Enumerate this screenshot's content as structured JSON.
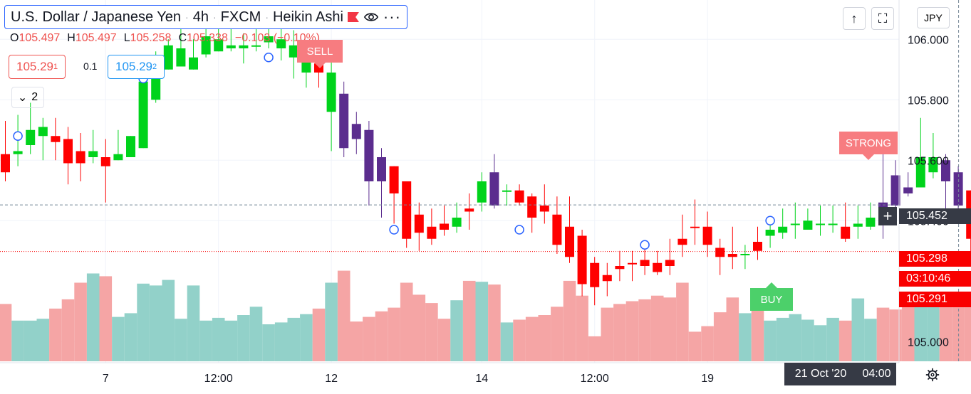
{
  "header": {
    "symbol": "U.S. Dollar / Japanese Yen",
    "interval": "4h",
    "exchange": "FXCM",
    "chart_style": "Heikin Ashi",
    "sep": "·"
  },
  "ohlc": {
    "o_label": "O",
    "o": "105.497",
    "h_label": "H",
    "h": "105.497",
    "l_label": "L",
    "l": "105.258",
    "c_label": "C",
    "c": "105.338",
    "change": "−0.103 (−0.10%)"
  },
  "quotes": {
    "bid": "105.29",
    "bid_sup": "1",
    "spread": "0.1",
    "ask": "105.29",
    "ask_sup": "2"
  },
  "indicators_toggle": {
    "chevron": "⌄",
    "count": "2"
  },
  "toolbar": {
    "currency": "JPY",
    "arrow_glyph": "↑",
    "maximize_glyph": "⛶"
  },
  "signals": {
    "sell": "SELL",
    "strong": "STRONG",
    "buy": "BUY"
  },
  "price_labels": {
    "crosshair": "105.452",
    "last": "105.298",
    "countdown": "03:10:46",
    "bid": "105.291",
    "plus": "+"
  },
  "time_labels": {
    "crosshair_date": "21 Oct '20",
    "crosshair_time": "04:00"
  },
  "colors": {
    "bull": "#00d31b",
    "bear": "#ff0000",
    "strong_bear": "#5b2d8e",
    "vol_up": "#92d1c9",
    "vol_down": "#f5a5a5",
    "grid": "#f0f3fa",
    "axis_text": "#131722"
  },
  "chart_data": {
    "type": "candlestick",
    "title": "U.S. Dollar / Japanese Yen · 4h · FXCM · Heikin Ashi",
    "ylim": [
      104.93,
      106.13
    ],
    "y_ticks": [
      106.0,
      105.8,
      105.6,
      105.4,
      105.0
    ],
    "y_tick_labels": [
      "106.000",
      "105.800",
      "105.600",
      "105.400",
      "105.000"
    ],
    "x_ticks": [
      {
        "index": 8,
        "label": "7"
      },
      {
        "index": 17,
        "label": "12:00"
      },
      {
        "index": 26,
        "label": "12"
      },
      {
        "index": 38,
        "label": "14"
      },
      {
        "index": 47,
        "label": "12:00"
      },
      {
        "index": 56,
        "label": "19"
      }
    ],
    "crosshair_price": 105.452,
    "last_price": 105.298,
    "candles": [
      {
        "o": 105.62,
        "h": 105.73,
        "l": 105.53,
        "c": 105.56,
        "d": "down",
        "v": 0.62
      },
      {
        "o": 105.63,
        "h": 105.75,
        "l": 105.58,
        "c": 105.62,
        "d": "up",
        "v": 0.44
      },
      {
        "o": 105.7,
        "h": 105.79,
        "l": 105.62,
        "c": 105.65,
        "d": "up",
        "v": 0.44
      },
      {
        "o": 105.68,
        "h": 105.74,
        "l": 105.6,
        "c": 105.71,
        "d": "up",
        "v": 0.46
      },
      {
        "o": 105.68,
        "h": 105.74,
        "l": 105.6,
        "c": 105.66,
        "d": "down",
        "v": 0.57
      },
      {
        "o": 105.67,
        "h": 105.71,
        "l": 105.52,
        "c": 105.59,
        "d": "down",
        "v": 0.67
      },
      {
        "o": 105.63,
        "h": 105.69,
        "l": 105.53,
        "c": 105.59,
        "d": "down",
        "v": 0.85
      },
      {
        "o": 105.63,
        "h": 105.7,
        "l": 105.59,
        "c": 105.61,
        "d": "up",
        "v": 0.95
      },
      {
        "o": 105.61,
        "h": 105.67,
        "l": 105.46,
        "c": 105.58,
        "d": "down",
        "v": 0.92
      },
      {
        "o": 105.62,
        "h": 105.7,
        "l": 105.6,
        "c": 105.6,
        "d": "up",
        "v": 0.48
      },
      {
        "o": 105.68,
        "h": 105.68,
        "l": 105.61,
        "c": 105.61,
        "d": "up",
        "v": 0.52
      },
      {
        "o": 105.86,
        "h": 105.86,
        "l": 105.64,
        "c": 105.64,
        "d": "up",
        "v": 0.84
      },
      {
        "o": 105.87,
        "h": 105.96,
        "l": 105.79,
        "c": 105.8,
        "d": "up",
        "v": 0.82
      },
      {
        "o": 105.98,
        "h": 106.0,
        "l": 105.9,
        "c": 105.9,
        "d": "up",
        "v": 0.88
      },
      {
        "o": 105.97,
        "h": 106.06,
        "l": 105.91,
        "c": 105.91,
        "d": "up",
        "v": 0.46
      },
      {
        "o": 105.94,
        "h": 106.0,
        "l": 105.9,
        "c": 105.9,
        "d": "up",
        "v": 0.82
      },
      {
        "o": 106.01,
        "h": 106.07,
        "l": 105.94,
        "c": 105.95,
        "d": "up",
        "v": 0.44
      },
      {
        "o": 106.0,
        "h": 106.05,
        "l": 105.96,
        "c": 105.96,
        "d": "up",
        "v": 0.47
      },
      {
        "o": 105.98,
        "h": 106.05,
        "l": 105.96,
        "c": 105.97,
        "d": "up",
        "v": 0.44
      },
      {
        "o": 105.98,
        "h": 106.02,
        "l": 105.92,
        "c": 105.97,
        "d": "up",
        "v": 0.5
      },
      {
        "o": 105.98,
        "h": 106.04,
        "l": 105.96,
        "c": 105.98,
        "d": "up",
        "v": 0.59
      },
      {
        "o": 106.01,
        "h": 106.06,
        "l": 105.97,
        "c": 105.99,
        "d": "up",
        "v": 0.4
      },
      {
        "o": 106.0,
        "h": 106.05,
        "l": 105.93,
        "c": 105.97,
        "d": "up",
        "v": 0.42
      },
      {
        "o": 105.98,
        "h": 106.03,
        "l": 105.87,
        "c": 105.94,
        "d": "up",
        "v": 0.47
      },
      {
        "o": 105.94,
        "h": 105.97,
        "l": 105.84,
        "c": 105.89,
        "d": "up",
        "v": 0.51
      },
      {
        "o": 105.92,
        "h": 105.97,
        "l": 105.84,
        "c": 105.89,
        "d": "down",
        "v": 0.57
      },
      {
        "o": 105.89,
        "h": 105.94,
        "l": 105.63,
        "c": 105.76,
        "d": "up",
        "v": 0.85
      },
      {
        "o": 105.82,
        "h": 105.86,
        "l": 105.61,
        "c": 105.64,
        "d": "strong",
        "v": 0.98
      },
      {
        "o": 105.72,
        "h": 105.76,
        "l": 105.62,
        "c": 105.67,
        "d": "strong",
        "v": 0.43
      },
      {
        "o": 105.7,
        "h": 105.73,
        "l": 105.45,
        "c": 105.53,
        "d": "strong",
        "v": 0.48
      },
      {
        "o": 105.61,
        "h": 105.64,
        "l": 105.41,
        "c": 105.53,
        "d": "strong",
        "v": 0.54
      },
      {
        "o": 105.58,
        "h": 105.58,
        "l": 105.39,
        "c": 105.49,
        "d": "down",
        "v": 0.58
      },
      {
        "o": 105.53,
        "h": 105.53,
        "l": 105.31,
        "c": 105.34,
        "d": "down",
        "v": 0.85
      },
      {
        "o": 105.42,
        "h": 105.46,
        "l": 105.3,
        "c": 105.36,
        "d": "down",
        "v": 0.72
      },
      {
        "o": 105.38,
        "h": 105.44,
        "l": 105.32,
        "c": 105.34,
        "d": "down",
        "v": 0.63
      },
      {
        "o": 105.39,
        "h": 105.45,
        "l": 105.35,
        "c": 105.37,
        "d": "down",
        "v": 0.46
      },
      {
        "o": 105.41,
        "h": 105.46,
        "l": 105.36,
        "c": 105.38,
        "d": "up",
        "v": 0.66
      },
      {
        "o": 105.44,
        "h": 105.49,
        "l": 105.37,
        "c": 105.43,
        "d": "down",
        "v": 0.87
      },
      {
        "o": 105.53,
        "h": 105.56,
        "l": 105.43,
        "c": 105.46,
        "d": "up",
        "v": 0.86
      },
      {
        "o": 105.56,
        "h": 105.62,
        "l": 105.44,
        "c": 105.45,
        "d": "strong",
        "v": 0.83
      },
      {
        "o": 105.5,
        "h": 105.52,
        "l": 105.45,
        "c": 105.5,
        "d": "up",
        "v": 0.42
      },
      {
        "o": 105.5,
        "h": 105.52,
        "l": 105.45,
        "c": 105.46,
        "d": "down",
        "v": 0.45
      },
      {
        "o": 105.48,
        "h": 105.49,
        "l": 105.36,
        "c": 105.41,
        "d": "down",
        "v": 0.48
      },
      {
        "o": 105.45,
        "h": 105.52,
        "l": 105.39,
        "c": 105.43,
        "d": "down",
        "v": 0.5
      },
      {
        "o": 105.42,
        "h": 105.48,
        "l": 105.29,
        "c": 105.32,
        "d": "down",
        "v": 0.59
      },
      {
        "o": 105.38,
        "h": 105.48,
        "l": 105.26,
        "c": 105.28,
        "d": "down",
        "v": 0.87
      },
      {
        "o": 105.35,
        "h": 105.37,
        "l": 105.15,
        "c": 105.19,
        "d": "down",
        "v": 0.71
      },
      {
        "o": 105.26,
        "h": 105.28,
        "l": 105.12,
        "c": 105.18,
        "d": "down",
        "v": 0.27
      },
      {
        "o": 105.22,
        "h": 105.26,
        "l": 105.15,
        "c": 105.2,
        "d": "down",
        "v": 0.58
      },
      {
        "o": 105.24,
        "h": 105.3,
        "l": 105.2,
        "c": 105.25,
        "d": "down",
        "v": 0.62
      },
      {
        "o": 105.26,
        "h": 105.3,
        "l": 105.2,
        "c": 105.26,
        "d": "down",
        "v": 0.65
      },
      {
        "o": 105.27,
        "h": 105.31,
        "l": 105.22,
        "c": 105.25,
        "d": "down",
        "v": 0.67
      },
      {
        "o": 105.26,
        "h": 105.3,
        "l": 105.22,
        "c": 105.23,
        "d": "down",
        "v": 0.71
      },
      {
        "o": 105.27,
        "h": 105.34,
        "l": 105.22,
        "c": 105.25,
        "d": "down",
        "v": 0.69
      },
      {
        "o": 105.32,
        "h": 105.42,
        "l": 105.28,
        "c": 105.34,
        "d": "down",
        "v": 0.85
      },
      {
        "o": 105.38,
        "h": 105.47,
        "l": 105.32,
        "c": 105.38,
        "d": "down",
        "v": 0.32
      },
      {
        "o": 105.38,
        "h": 105.43,
        "l": 105.28,
        "c": 105.32,
        "d": "down",
        "v": 0.38
      },
      {
        "o": 105.31,
        "h": 105.34,
        "l": 105.22,
        "c": 105.28,
        "d": "down",
        "v": 0.53
      },
      {
        "o": 105.29,
        "h": 105.38,
        "l": 105.24,
        "c": 105.28,
        "d": "down",
        "v": 0.69
      },
      {
        "o": 105.29,
        "h": 105.32,
        "l": 105.24,
        "c": 105.29,
        "d": "up",
        "v": 0.52
      },
      {
        "o": 105.33,
        "h": 105.38,
        "l": 105.27,
        "c": 105.3,
        "d": "down",
        "v": 0.61
      },
      {
        "o": 105.35,
        "h": 105.41,
        "l": 105.31,
        "c": 105.37,
        "d": "up",
        "v": 0.44
      },
      {
        "o": 105.38,
        "h": 105.44,
        "l": 105.34,
        "c": 105.36,
        "d": "up",
        "v": 0.47
      },
      {
        "o": 105.39,
        "h": 105.46,
        "l": 105.34,
        "c": 105.39,
        "d": "up",
        "v": 0.51
      },
      {
        "o": 105.4,
        "h": 105.44,
        "l": 105.37,
        "c": 105.37,
        "d": "up",
        "v": 0.45
      },
      {
        "o": 105.39,
        "h": 105.45,
        "l": 105.35,
        "c": 105.39,
        "d": "up",
        "v": 0.39
      },
      {
        "o": 105.39,
        "h": 105.45,
        "l": 105.36,
        "c": 105.39,
        "d": "up",
        "v": 0.47
      },
      {
        "o": 105.38,
        "h": 105.46,
        "l": 105.33,
        "c": 105.34,
        "d": "down",
        "v": 0.44
      },
      {
        "o": 105.39,
        "h": 105.45,
        "l": 105.34,
        "c": 105.38,
        "d": "up",
        "v": 0.68
      },
      {
        "o": 105.41,
        "h": 105.46,
        "l": 105.37,
        "c": 105.38,
        "d": "up",
        "v": 0.46
      },
      {
        "o": 105.46,
        "h": 105.62,
        "l": 105.34,
        "c": 105.4,
        "d": "strong",
        "v": 0.58
      },
      {
        "o": 105.55,
        "h": 105.6,
        "l": 105.43,
        "c": 105.45,
        "d": "strong",
        "v": 0.56
      },
      {
        "o": 105.51,
        "h": 105.56,
        "l": 105.48,
        "c": 105.49,
        "d": "strong",
        "v": 0.68
      },
      {
        "o": 105.61,
        "h": 105.74,
        "l": 105.51,
        "c": 105.51,
        "d": "up",
        "v": 0.65
      },
      {
        "o": 105.61,
        "h": 105.69,
        "l": 105.54,
        "c": 105.56,
        "d": "up",
        "v": 0.66
      },
      {
        "o": 105.6,
        "h": 105.62,
        "l": 105.43,
        "c": 105.53,
        "d": "strong",
        "v": 0.62
      },
      {
        "o": 105.56,
        "h": 105.58,
        "l": 105.42,
        "c": 105.45,
        "d": "strong",
        "v": 0.61
      },
      {
        "o": 105.5,
        "h": 105.5,
        "l": 105.26,
        "c": 105.34,
        "d": "down",
        "v": 0.71
      },
      {
        "o": 105.41,
        "h": 105.43,
        "l": 105.26,
        "c": 105.3,
        "d": "down",
        "v": 0.08
      }
    ]
  }
}
